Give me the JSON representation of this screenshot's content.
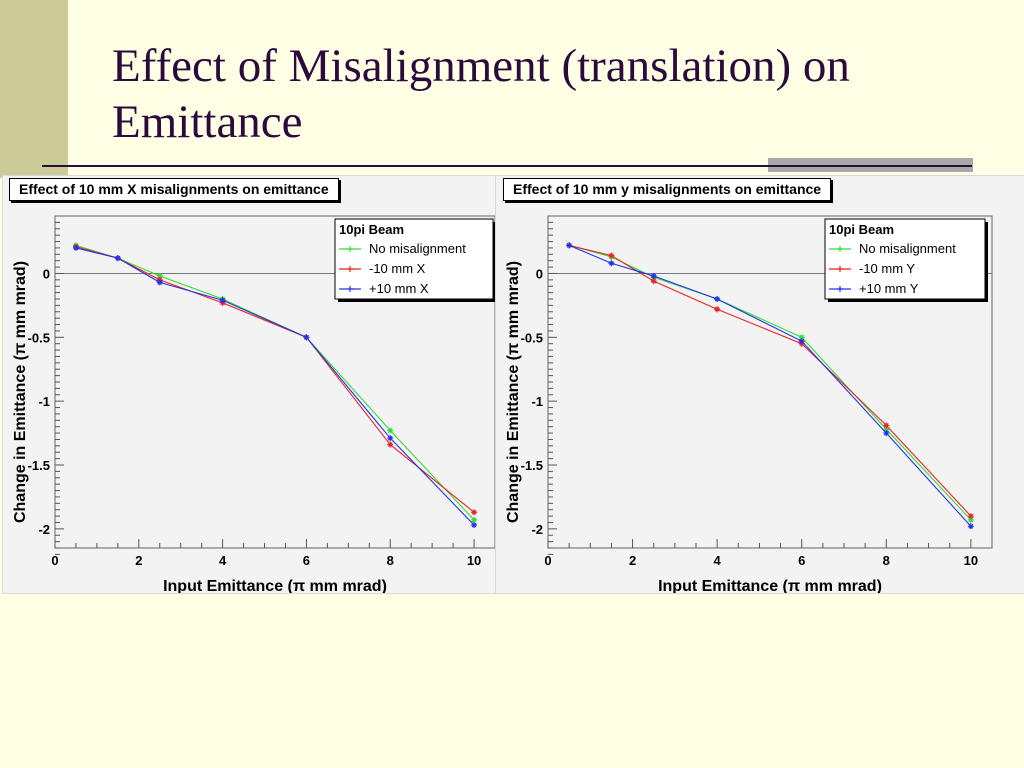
{
  "slide": {
    "title": "Effect of Misalignment (translation) on Emittance"
  },
  "chart_data": [
    {
      "type": "line",
      "title": "Effect of 10 mm X misalignments on emittance",
      "xlabel": "Input Emittance (π mm mrad)",
      "ylabel": "Change in Emittance (π mm mrad)",
      "xlim": [
        0,
        10.5
      ],
      "ylim": [
        -2.15,
        0.45
      ],
      "xticks": [
        "0",
        "2",
        "4",
        "6",
        "8",
        "10"
      ],
      "yticks": [
        "0",
        "-0.5",
        "-1",
        "-1.5",
        "-2"
      ],
      "legend": {
        "title": "10pi Beam",
        "position": "top-right"
      },
      "grid": false,
      "series": [
        {
          "name": "No misalignment",
          "color": "#33DD33",
          "x": [
            0.5,
            1.5,
            2.5,
            4,
            6,
            8,
            10
          ],
          "y": [
            0.22,
            0.12,
            -0.02,
            -0.2,
            -0.5,
            -1.23,
            -1.93
          ]
        },
        {
          "name": "-10 mm X",
          "color": "#EE2222",
          "x": [
            0.5,
            1.5,
            2.5,
            4,
            6,
            8,
            10
          ],
          "y": [
            0.21,
            0.12,
            -0.05,
            -0.23,
            -0.5,
            -1.34,
            -1.87
          ]
        },
        {
          "name": "+10 mm X",
          "color": "#2233EE",
          "x": [
            0.5,
            1.5,
            2.5,
            4,
            6,
            8,
            10
          ],
          "y": [
            0.2,
            0.12,
            -0.07,
            -0.21,
            -0.5,
            -1.29,
            -1.97
          ]
        }
      ]
    },
    {
      "type": "line",
      "title": "Effect of 10 mm y misalignments on emittance",
      "xlabel": "Input Emittance (π mm mrad)",
      "ylabel": "Change in Emittance (π mm mrad)",
      "xlim": [
        0,
        10.5
      ],
      "ylim": [
        -2.15,
        0.45
      ],
      "xticks": [
        "0",
        "2",
        "4",
        "6",
        "8",
        "10"
      ],
      "yticks": [
        "0",
        "-0.5",
        "-1",
        "-1.5",
        "-2"
      ],
      "legend": {
        "title": "10pi Beam",
        "position": "top-right"
      },
      "grid": false,
      "series": [
        {
          "name": "No misalignment",
          "color": "#33DD33",
          "x": [
            0.5,
            1.5,
            2.5,
            4,
            6,
            8,
            10
          ],
          "y": [
            0.22,
            0.13,
            -0.03,
            -0.2,
            -0.5,
            -1.22,
            -1.93
          ]
        },
        {
          "name": "-10 mm Y",
          "color": "#EE2222",
          "x": [
            0.5,
            1.5,
            2.5,
            4,
            6,
            8,
            10
          ],
          "y": [
            0.22,
            0.14,
            -0.06,
            -0.28,
            -0.55,
            -1.19,
            -1.9
          ]
        },
        {
          "name": "+10 mm Y",
          "color": "#2233EE",
          "x": [
            0.5,
            1.5,
            2.5,
            4,
            6,
            8,
            10
          ],
          "y": [
            0.22,
            0.08,
            -0.02,
            -0.2,
            -0.53,
            -1.25,
            -1.98
          ]
        }
      ]
    }
  ]
}
